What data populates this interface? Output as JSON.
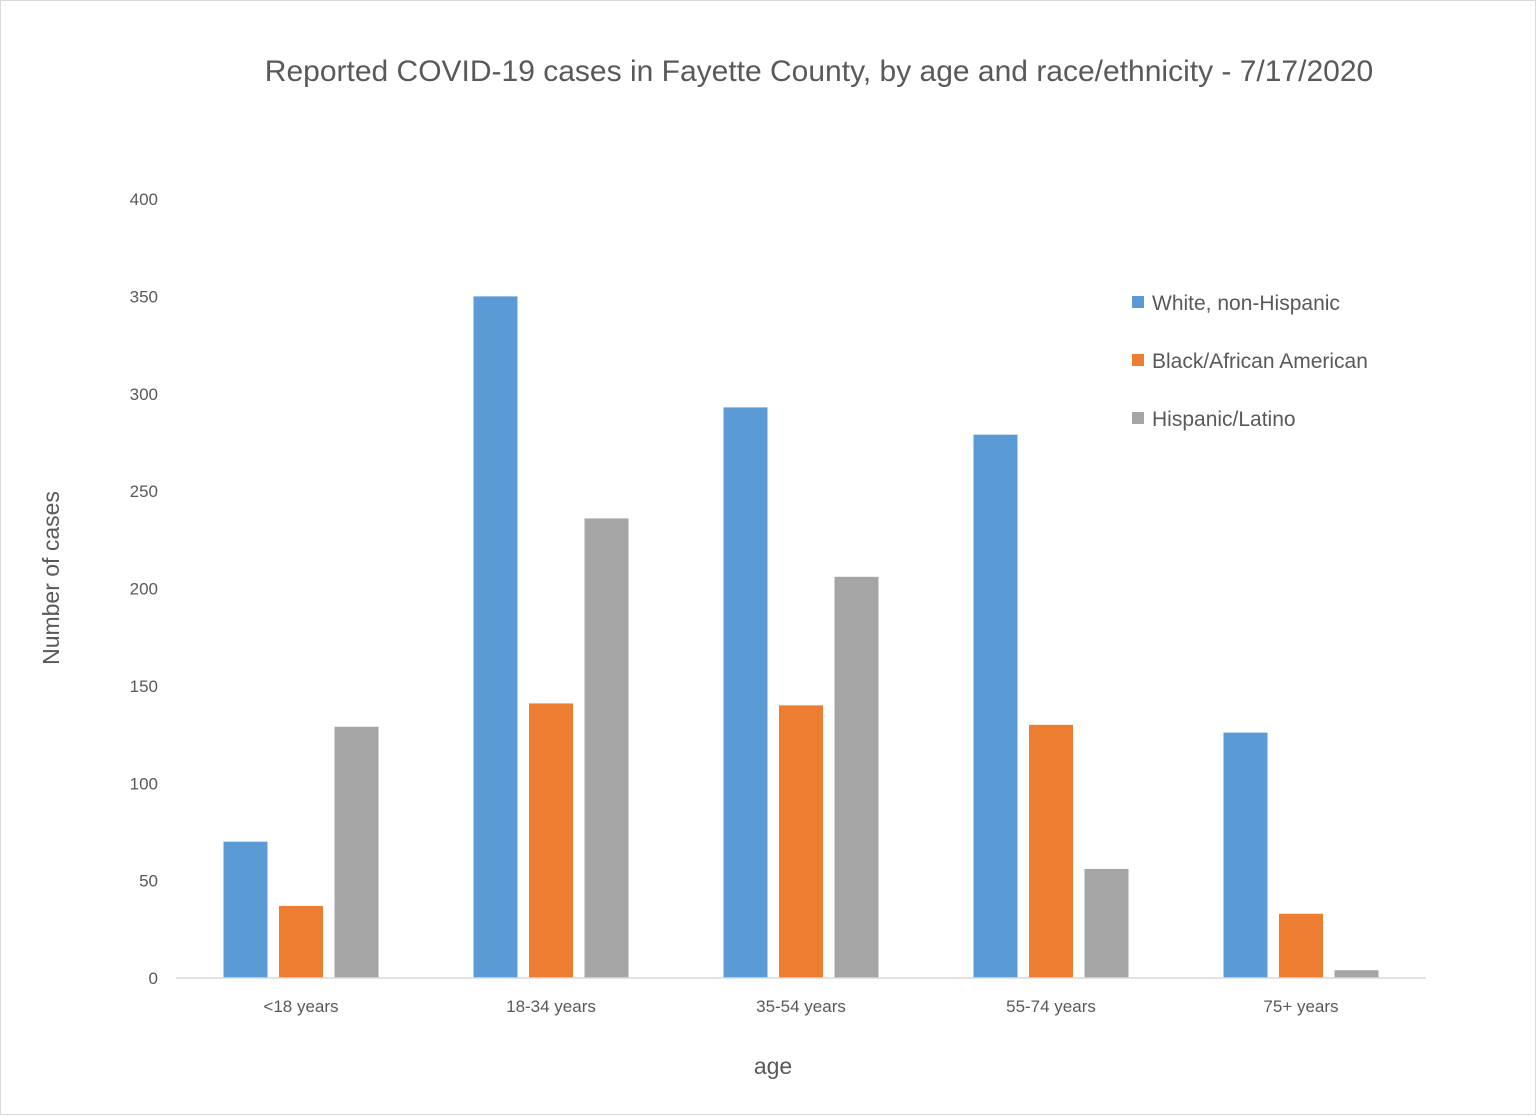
{
  "chart_data": {
    "type": "bar",
    "title": "Reported COVID-19 cases in Fayette County, by age and race/ethnicity - 7/17/2020",
    "xlabel": "age",
    "ylabel": "Number of cases",
    "categories": [
      "<18 years",
      "18-34 years",
      "35-54 years",
      "55-74 years",
      "75+ years"
    ],
    "series": [
      {
        "name": "White, non-Hispanic",
        "color": "#5b9bd5",
        "values": [
          70,
          350,
          293,
          279,
          126
        ]
      },
      {
        "name": "Black/African American",
        "color": "#ed7d31",
        "values": [
          37,
          141,
          140,
          130,
          33
        ]
      },
      {
        "name": "Hispanic/Latino",
        "color": "#a5a5a5",
        "values": [
          129,
          236,
          206,
          56,
          4
        ]
      }
    ],
    "ylim": [
      0,
      400
    ],
    "yticks": [
      0,
      50,
      100,
      150,
      200,
      250,
      300,
      350,
      400
    ],
    "grid": false,
    "legend_position": "right"
  }
}
